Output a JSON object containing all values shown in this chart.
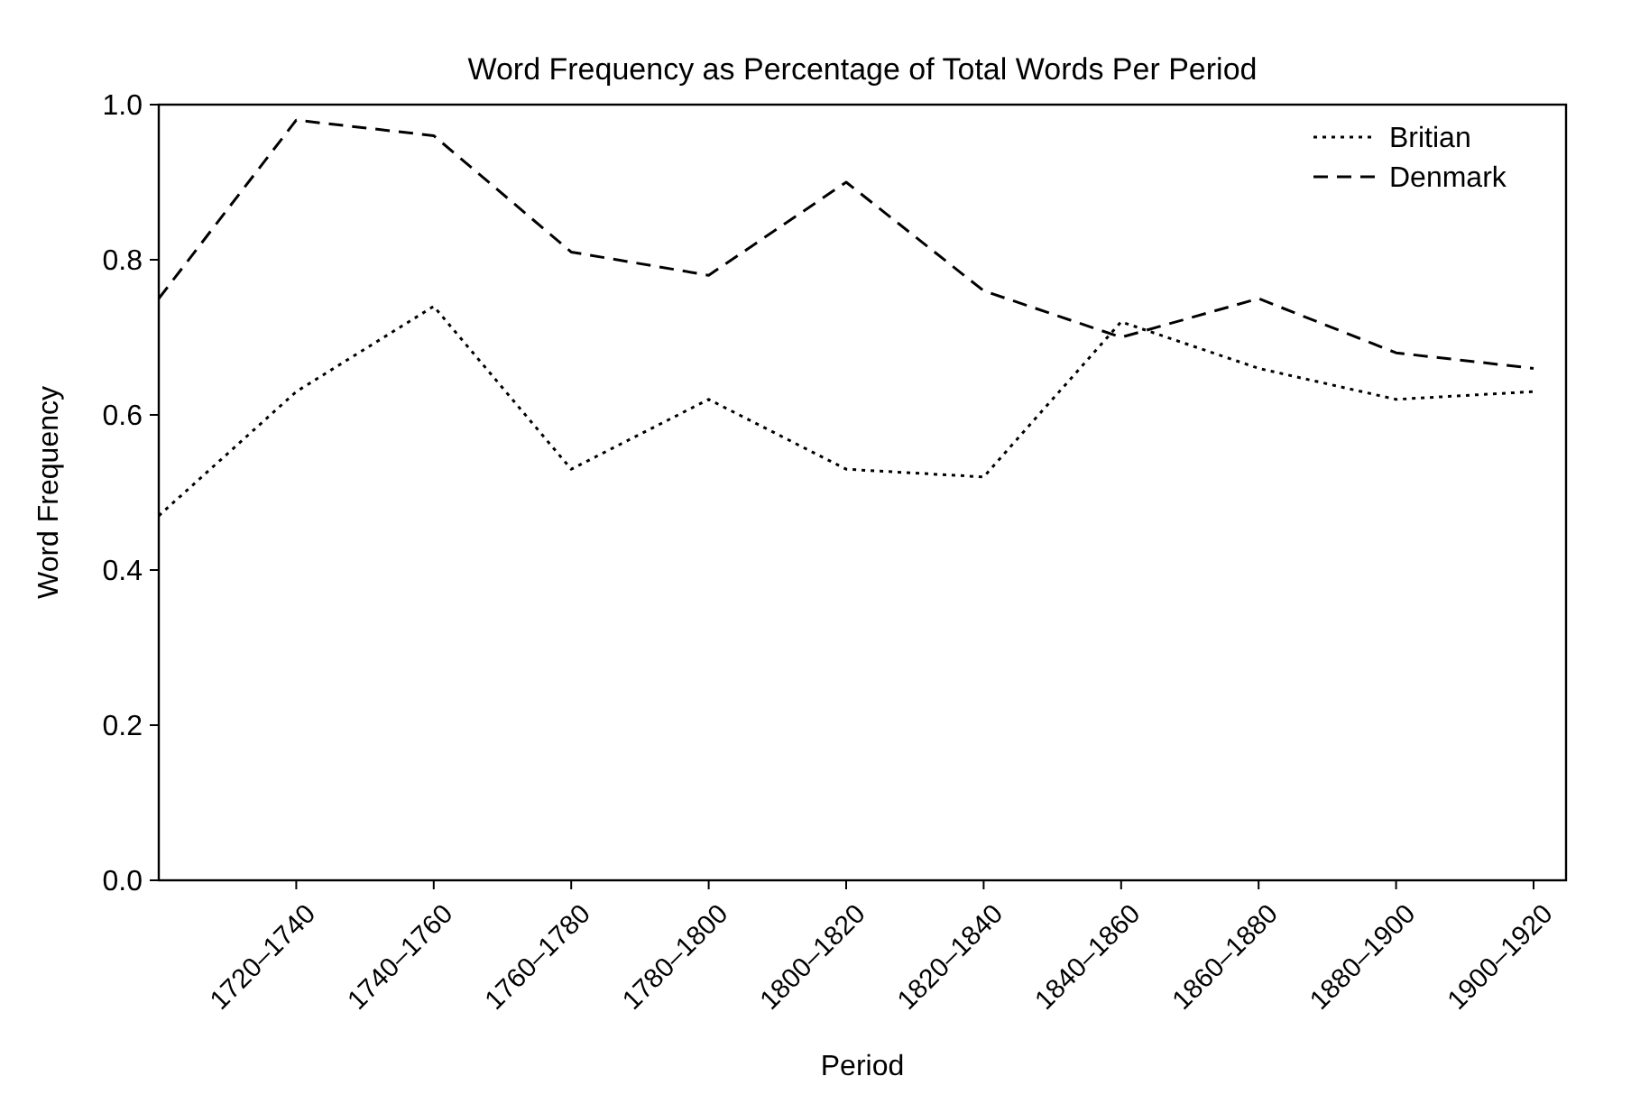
{
  "chart_data": {
    "type": "line",
    "title": "Word Frequency as Percentage of Total Words Per Period",
    "xlabel": "Period",
    "ylabel": "Word Frequency",
    "categories": [
      null,
      "1720–1740",
      "1740–1760",
      "1760–1780",
      "1780–1800",
      "1800–1820",
      "1820–1840",
      "1840–1860",
      "1860–1880",
      "1880–1900",
      "1900–1920"
    ],
    "ylim": [
      0,
      1
    ],
    "yticks": [
      {
        "value": 0,
        "label": "0.0"
      },
      0.2,
      0.4,
      0.6,
      0.8,
      {
        "value": 1,
        "label": "1.0"
      }
    ],
    "series": [
      {
        "name": "Britian",
        "color": "#000000",
        "line_style": "dotted",
        "values": [
          0.47,
          0.63,
          0.74,
          0.53,
          0.62,
          0.53,
          0.52,
          0.72,
          0.66,
          0.62,
          0.63
        ]
      },
      {
        "name": "Denmark",
        "color": "#000000",
        "line_style": "dashed",
        "values": [
          0.75,
          0.98,
          0.96,
          0.81,
          0.78,
          0.9,
          0.76,
          0.7,
          0.75,
          0.68,
          0.66
        ]
      }
    ],
    "legend": "top right",
    "grid": false
  }
}
